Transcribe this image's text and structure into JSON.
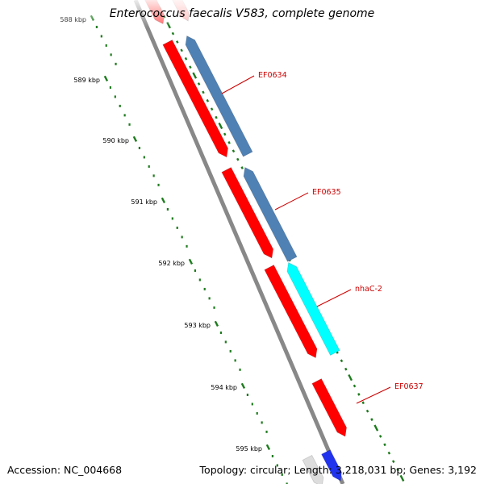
{
  "title": "Enterococcus faecalis V583, complete genome",
  "footer": {
    "accession_label": "Accession:",
    "accession": "NC_004668",
    "topology_label": "Topology:",
    "topology": "circular",
    "length_label": "Length:",
    "length": "3,218,031 bp",
    "genes_label": "Genes:",
    "genes": "3,192"
  },
  "scale": {
    "unit": "kbp",
    "ticks": [
      {
        "label": "588 kbp",
        "value": 588
      },
      {
        "label": "589 kbp",
        "value": 589
      },
      {
        "label": "590 kbp",
        "value": 590
      },
      {
        "label": "591 kbp",
        "value": 591
      },
      {
        "label": "592 kbp",
        "value": 592
      },
      {
        "label": "593 kbp",
        "value": 593
      },
      {
        "label": "594 kbp",
        "value": 594
      },
      {
        "label": "595 kbp",
        "value": 595
      }
    ]
  },
  "colors": {
    "backbone": "#888888",
    "forward_cds": "#ff0000",
    "reverse_cds": "#4f81b4",
    "highlight_cds": "#00ffff",
    "label_text": "#cc0000",
    "label_line": "#cc0000",
    "tick_mark": "#1e7b1e",
    "tick_label": "#000000"
  },
  "genes": [
    {
      "label": "EF0634",
      "strand": "reverse",
      "color": "reverse_cds"
    },
    {
      "label": "EF0635",
      "strand": "reverse",
      "color": "reverse_cds"
    },
    {
      "label": "nhaC-2",
      "strand": "reverse",
      "color": "highlight_cds"
    },
    {
      "label": "EF0637",
      "strand": "forward",
      "color": "forward_cds"
    }
  ]
}
